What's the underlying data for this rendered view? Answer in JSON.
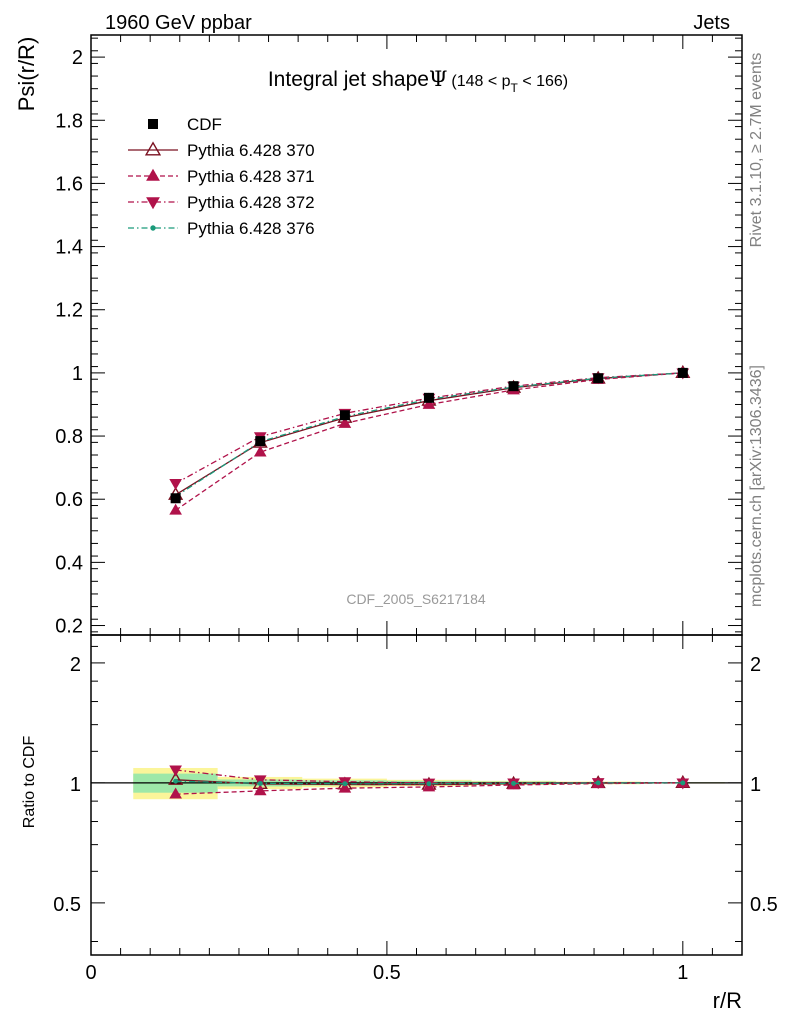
{
  "header": {
    "left": "1960 GeV ppbar",
    "right": "Jets"
  },
  "side_labels": {
    "rivet": "Rivet 3.1.10, ≥ 2.7M events",
    "mcplots": "mcplots.cern.ch [arXiv:1306.3436]"
  },
  "chart_data": [
    {
      "type": "line",
      "title": "Integral jet shape",
      "title_symbol": "Ψ",
      "title_range_pre": "(148 < p",
      "title_range_sub": "T",
      "title_range_post": " < 166)",
      "watermark": "CDF_2005_S6217184",
      "ylabel": "Psi(r/R)",
      "xlabel": "",
      "xlim": [
        0,
        1.1
      ],
      "ylim": [
        0.17,
        2.07
      ],
      "yticks": [
        0.2,
        0.4,
        0.6,
        0.8,
        1,
        1.2,
        1.4,
        1.6,
        1.8,
        2
      ],
      "ytick_labels": [
        "0.2",
        "0.4",
        "0.6",
        "0.8",
        "1",
        "1.2",
        "1.4",
        "1.6",
        "1.8",
        "2"
      ],
      "legend_position": "top-left",
      "x": [
        0.143,
        0.286,
        0.429,
        0.571,
        0.714,
        0.857,
        1.0
      ],
      "series": [
        {
          "name": "CDF",
          "color": "#000000",
          "marker": "square",
          "dash": "none",
          "values": [
            0.603,
            0.784,
            0.866,
            0.921,
            0.958,
            0.983,
            1.0
          ]
        },
        {
          "name": "Pythia 6.428 370",
          "color": "#7a1020",
          "marker": "triangle-open",
          "dash": "solid",
          "values": [
            0.614,
            0.779,
            0.858,
            0.912,
            0.953,
            0.982,
            1.0
          ]
        },
        {
          "name": "Pythia 6.428 371",
          "color": "#b0124a",
          "marker": "triangle-up",
          "dash": "dashed",
          "values": [
            0.565,
            0.749,
            0.84,
            0.9,
            0.946,
            0.979,
            1.0
          ]
        },
        {
          "name": "Pythia 6.428 372",
          "color": "#b0124a",
          "marker": "triangle-down",
          "dash": "dashdot",
          "values": [
            0.65,
            0.798,
            0.872,
            0.92,
            0.958,
            0.985,
            1.0
          ]
        },
        {
          "name": "Pythia 6.428 376",
          "color": "#1a9a7a",
          "marker": "dot",
          "dash": "dashdot",
          "values": [
            0.609,
            0.782,
            0.862,
            0.916,
            0.955,
            0.983,
            1.0
          ]
        }
      ]
    },
    {
      "type": "line",
      "ylabel": "Ratio to CDF",
      "xlabel": "r/R",
      "xlim": [
        0,
        1.1
      ],
      "ylim": [
        0.37,
        2.35
      ],
      "ylog": true,
      "yticks": [
        0.5,
        1,
        2
      ],
      "ytick_labels": [
        "0.5",
        "1",
        "2"
      ],
      "xticks": [
        0,
        0.5,
        1
      ],
      "xtick_labels": [
        "0",
        "0.5",
        "1"
      ],
      "x": [
        0.143,
        0.286,
        0.429,
        0.571,
        0.714,
        0.857,
        1.0
      ],
      "bands": {
        "edges": [
          0.0714,
          0.214,
          0.357,
          0.5,
          0.643,
          0.786,
          0.929,
          1.071
        ],
        "inner": [
          0.055,
          0.02,
          0.015,
          0.012,
          0.008,
          0.005,
          0.003
        ],
        "outer": [
          0.09,
          0.035,
          0.025,
          0.018,
          0.012,
          0.008,
          0.004
        ]
      },
      "series": [
        {
          "name": "Pythia 6.428 370",
          "values": [
            1.018,
            0.994,
            0.991,
            0.99,
            0.995,
            0.999,
            1.0
          ]
        },
        {
          "name": "Pythia 6.428 371",
          "values": [
            0.937,
            0.955,
            0.97,
            0.977,
            0.988,
            0.996,
            1.0
          ]
        },
        {
          "name": "Pythia 6.428 372",
          "values": [
            1.078,
            1.018,
            1.007,
            0.999,
            1.0,
            1.002,
            1.0
          ]
        },
        {
          "name": "Pythia 6.428 376",
          "values": [
            1.01,
            0.997,
            0.995,
            0.995,
            0.997,
            1.0,
            1.0
          ]
        }
      ]
    }
  ]
}
